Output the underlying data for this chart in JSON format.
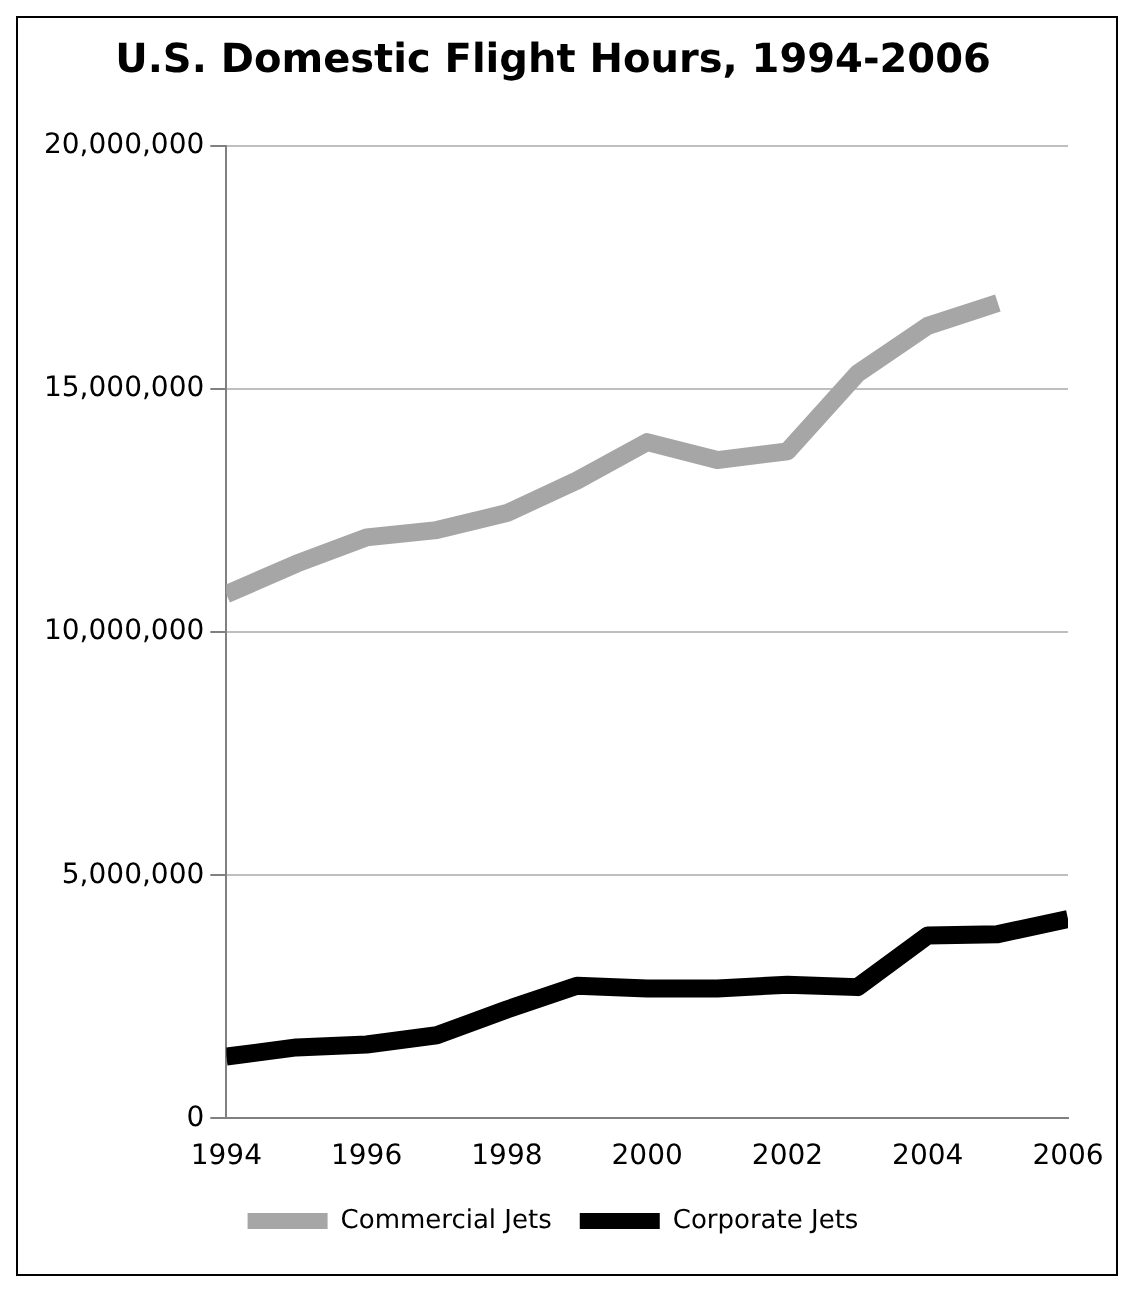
{
  "chart_data": {
    "type": "line",
    "title": "U.S. Domestic Flight Hours, 1994-2006",
    "x": [
      1994,
      1995,
      1996,
      1997,
      1998,
      1999,
      2000,
      2001,
      2002,
      2003,
      2004,
      2005,
      2006
    ],
    "series": [
      {
        "name": "Commercial Jets",
        "color": "#a6a6a6",
        "values": [
          10780000,
          11410000,
          11950000,
          12100000,
          12450000,
          13120000,
          13910000,
          13540000,
          13720000,
          15320000,
          16300000,
          16770000,
          null
        ]
      },
      {
        "name": "Corporate Jets",
        "color": "#000000",
        "values": [
          1270000,
          1460000,
          1520000,
          1710000,
          2240000,
          2730000,
          2670000,
          2670000,
          2750000,
          2700000,
          3760000,
          3790000,
          4100000
        ]
      }
    ],
    "xlim": [
      1994,
      2006
    ],
    "xticks": [
      1994,
      1996,
      1998,
      2000,
      2002,
      2004,
      2006
    ],
    "ylim": [
      0,
      20000000
    ],
    "yticks": [
      {
        "value": 0,
        "label": "0"
      },
      {
        "value": 5000000,
        "label": "5,000,000"
      },
      {
        "value": 10000000,
        "label": "10,000,000"
      },
      {
        "value": 15000000,
        "label": "15,000,000"
      },
      {
        "value": 20000000,
        "label": "20,000,000"
      }
    ],
    "grid": "y",
    "legend": "bottom",
    "marker": "none",
    "line_style": "solid"
  }
}
